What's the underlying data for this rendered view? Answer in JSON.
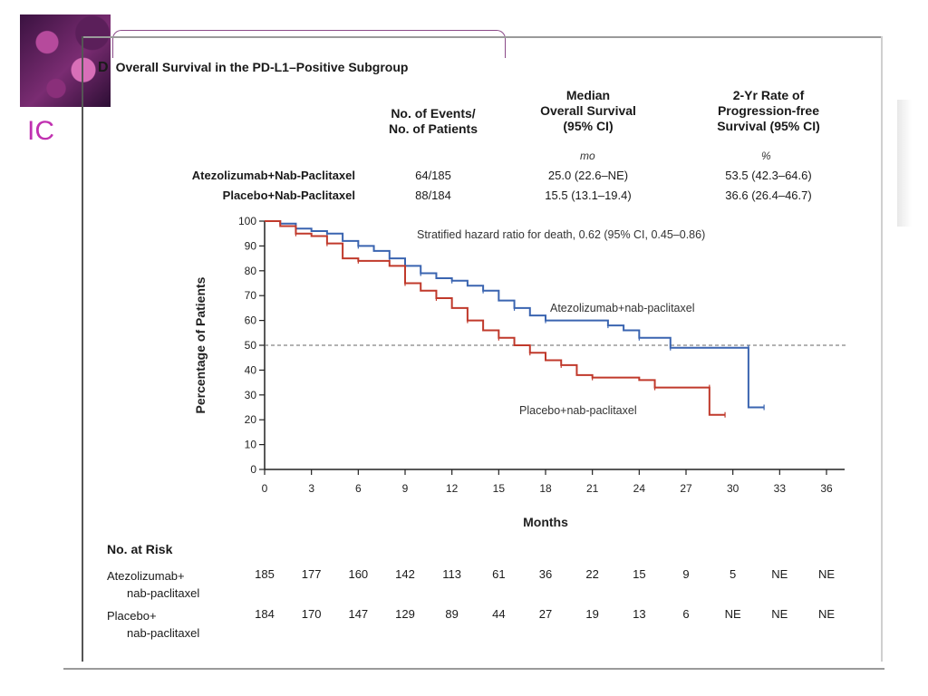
{
  "logo_text": "IC",
  "panel": {
    "letter": "D",
    "title": "Overall Survival in the PD-L1–Positive Subgroup"
  },
  "table": {
    "headers": [
      "No. of Events/\nNo. of Patients",
      "Median\nOverall Survival\n(95% CI)",
      "2-Yr Rate of\nProgression-free\nSurvival (95% CI)"
    ],
    "units": [
      "mo",
      "%"
    ],
    "rows": [
      {
        "label": "Atezolizumab+Nab-Paclitaxel",
        "events": "64/185",
        "median": "25.0 (22.6–NE)",
        "rate": "53.5 (42.3–64.6)"
      },
      {
        "label": "Placebo+Nab-Paclitaxel",
        "events": "88/184",
        "median": "15.5 (13.1–19.4)",
        "rate": "36.6 (26.4–46.7)"
      }
    ]
  },
  "chart_data": {
    "type": "line",
    "xlabel": "Months",
    "ylabel": "Percentage of Patients",
    "xlim": [
      0,
      36
    ],
    "ylim": [
      0,
      100
    ],
    "x_ticks": [
      0,
      3,
      6,
      9,
      12,
      15,
      18,
      21,
      24,
      27,
      30,
      33,
      36
    ],
    "y_ticks": [
      0,
      10,
      20,
      30,
      40,
      50,
      60,
      70,
      80,
      90,
      100
    ],
    "reference_line_y": 50,
    "annotation": "Stratified hazard ratio for death, 0.62 (95% CI, 0.45–0.86)",
    "series": [
      {
        "name": "Atezolizumab+nab-paclitaxel",
        "color": "#3a64b0",
        "points": [
          [
            0,
            100
          ],
          [
            1,
            99
          ],
          [
            2,
            97
          ],
          [
            3,
            96
          ],
          [
            4,
            95
          ],
          [
            5,
            92
          ],
          [
            6,
            90
          ],
          [
            7,
            88
          ],
          [
            8,
            85
          ],
          [
            9,
            82
          ],
          [
            10,
            79
          ],
          [
            11,
            77
          ],
          [
            12,
            76
          ],
          [
            13,
            74
          ],
          [
            14,
            72
          ],
          [
            15,
            68
          ],
          [
            16,
            65
          ],
          [
            17,
            62
          ],
          [
            18,
            60
          ],
          [
            21,
            60
          ],
          [
            22,
            58
          ],
          [
            23,
            56
          ],
          [
            24,
            53
          ],
          [
            25,
            53
          ],
          [
            26,
            49
          ],
          [
            30,
            49
          ],
          [
            31,
            49
          ],
          [
            31,
            25
          ],
          [
            32,
            25
          ]
        ]
      },
      {
        "name": "Placebo+nab-paclitaxel",
        "color": "#c0392b",
        "points": [
          [
            0,
            100
          ],
          [
            1,
            98
          ],
          [
            2,
            95
          ],
          [
            3,
            94
          ],
          [
            4,
            91
          ],
          [
            5,
            85
          ],
          [
            6,
            84
          ],
          [
            8,
            82
          ],
          [
            9,
            75
          ],
          [
            10,
            72
          ],
          [
            11,
            69
          ],
          [
            12,
            65
          ],
          [
            13,
            60
          ],
          [
            14,
            56
          ],
          [
            15,
            53
          ],
          [
            16,
            50
          ],
          [
            17,
            47
          ],
          [
            18,
            44
          ],
          [
            19,
            42
          ],
          [
            20,
            38
          ],
          [
            21,
            37
          ],
          [
            24,
            36
          ],
          [
            25,
            33
          ],
          [
            27,
            33
          ],
          [
            28.5,
            33
          ],
          [
            28.5,
            22
          ],
          [
            29.5,
            22
          ]
        ]
      }
    ]
  },
  "risk": {
    "title": "No. at Risk",
    "rows": [
      {
        "label1": "Atezolizumab+",
        "label2": "nab-paclitaxel",
        "values": [
          "185",
          "177",
          "160",
          "142",
          "113",
          "61",
          "36",
          "22",
          "15",
          "9",
          "5",
          "NE",
          "NE"
        ]
      },
      {
        "label1": "Placebo+",
        "label2": "nab-paclitaxel",
        "values": [
          "184",
          "170",
          "147",
          "129",
          "89",
          "44",
          "27",
          "19",
          "13",
          "6",
          "NE",
          "NE",
          "NE"
        ]
      }
    ]
  }
}
